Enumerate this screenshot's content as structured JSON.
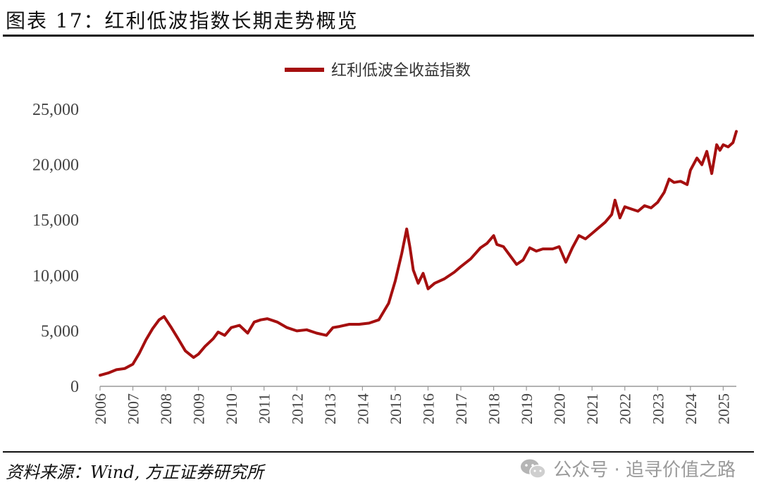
{
  "figure": {
    "title": "图表 17：红利低波指数长期走势概览",
    "source": "资料来源：Wind, 方正证券研究所",
    "watermark": "公众号 · 追寻价值之路"
  },
  "chart_data": {
    "type": "line",
    "title": "",
    "xlabel": "",
    "ylabel": "",
    "ylim": [
      0,
      25000
    ],
    "yticks": [
      0,
      5000,
      10000,
      15000,
      20000,
      25000
    ],
    "ytick_labels": [
      "0",
      "5,000",
      "10,000",
      "15,000",
      "20,000",
      "25,000"
    ],
    "xlim": [
      2006,
      2025.4
    ],
    "xticks": [
      2006,
      2007,
      2008,
      2009,
      2010,
      2011,
      2012,
      2013,
      2014,
      2015,
      2016,
      2017,
      2018,
      2019,
      2020,
      2021,
      2022,
      2023,
      2024,
      2025
    ],
    "xtick_labels": [
      "2006",
      "2007",
      "2008",
      "2009",
      "2010",
      "2011",
      "2012",
      "2013",
      "2014",
      "2015",
      "2016",
      "2017",
      "2018",
      "2019",
      "2020",
      "2021",
      "2022",
      "2023",
      "2024",
      "2025"
    ],
    "grid": false,
    "legend": "top-center",
    "series": [
      {
        "name": "红利低波全收益指数",
        "color": "#a50f0f",
        "x": [
          2006.0,
          2006.25,
          2006.5,
          2006.75,
          2007.0,
          2007.2,
          2007.4,
          2007.6,
          2007.8,
          2007.95,
          2008.15,
          2008.4,
          2008.6,
          2008.85,
          2009.0,
          2009.2,
          2009.45,
          2009.6,
          2009.8,
          2010.0,
          2010.25,
          2010.5,
          2010.7,
          2010.9,
          2011.1,
          2011.4,
          2011.7,
          2012.0,
          2012.3,
          2012.6,
          2012.9,
          2013.1,
          2013.3,
          2013.6,
          2013.9,
          2014.2,
          2014.5,
          2014.8,
          2015.0,
          2015.2,
          2015.35,
          2015.45,
          2015.55,
          2015.7,
          2015.85,
          2016.0,
          2016.2,
          2016.5,
          2016.8,
          2017.0,
          2017.3,
          2017.6,
          2017.8,
          2018.0,
          2018.1,
          2018.3,
          2018.5,
          2018.7,
          2018.9,
          2019.1,
          2019.3,
          2019.5,
          2019.8,
          2020.0,
          2020.2,
          2020.4,
          2020.6,
          2020.8,
          2021.0,
          2021.2,
          2021.4,
          2021.6,
          2021.7,
          2021.85,
          2022.0,
          2022.2,
          2022.4,
          2022.6,
          2022.8,
          2023.0,
          2023.2,
          2023.35,
          2023.5,
          2023.7,
          2023.9,
          2024.0,
          2024.2,
          2024.35,
          2024.5,
          2024.65,
          2024.8,
          2024.9,
          2025.0,
          2025.15,
          2025.3,
          2025.4
        ],
        "y": [
          1000,
          1200,
          1500,
          1600,
          2000,
          3000,
          4200,
          5200,
          6000,
          6300,
          5400,
          4200,
          3200,
          2600,
          2900,
          3600,
          4300,
          4900,
          4600,
          5300,
          5500,
          4800,
          5800,
          6000,
          6100,
          5800,
          5300,
          5000,
          5100,
          4800,
          4600,
          5300,
          5400,
          5600,
          5600,
          5700,
          6000,
          7500,
          9500,
          12000,
          14200,
          12500,
          10500,
          9300,
          10200,
          8800,
          9300,
          9700,
          10300,
          10800,
          11500,
          12500,
          12900,
          13600,
          12800,
          12600,
          11800,
          11000,
          11400,
          12500,
          12200,
          12400,
          12400,
          12600,
          11200,
          12500,
          13600,
          13300,
          13800,
          14300,
          14800,
          15500,
          16800,
          15200,
          16200,
          16000,
          15800,
          16300,
          16100,
          16600,
          17500,
          18700,
          18400,
          18500,
          18200,
          19500,
          20600,
          20000,
          21200,
          19200,
          21800,
          21300,
          21800,
          21600,
          22000,
          23000
        ]
      }
    ]
  }
}
